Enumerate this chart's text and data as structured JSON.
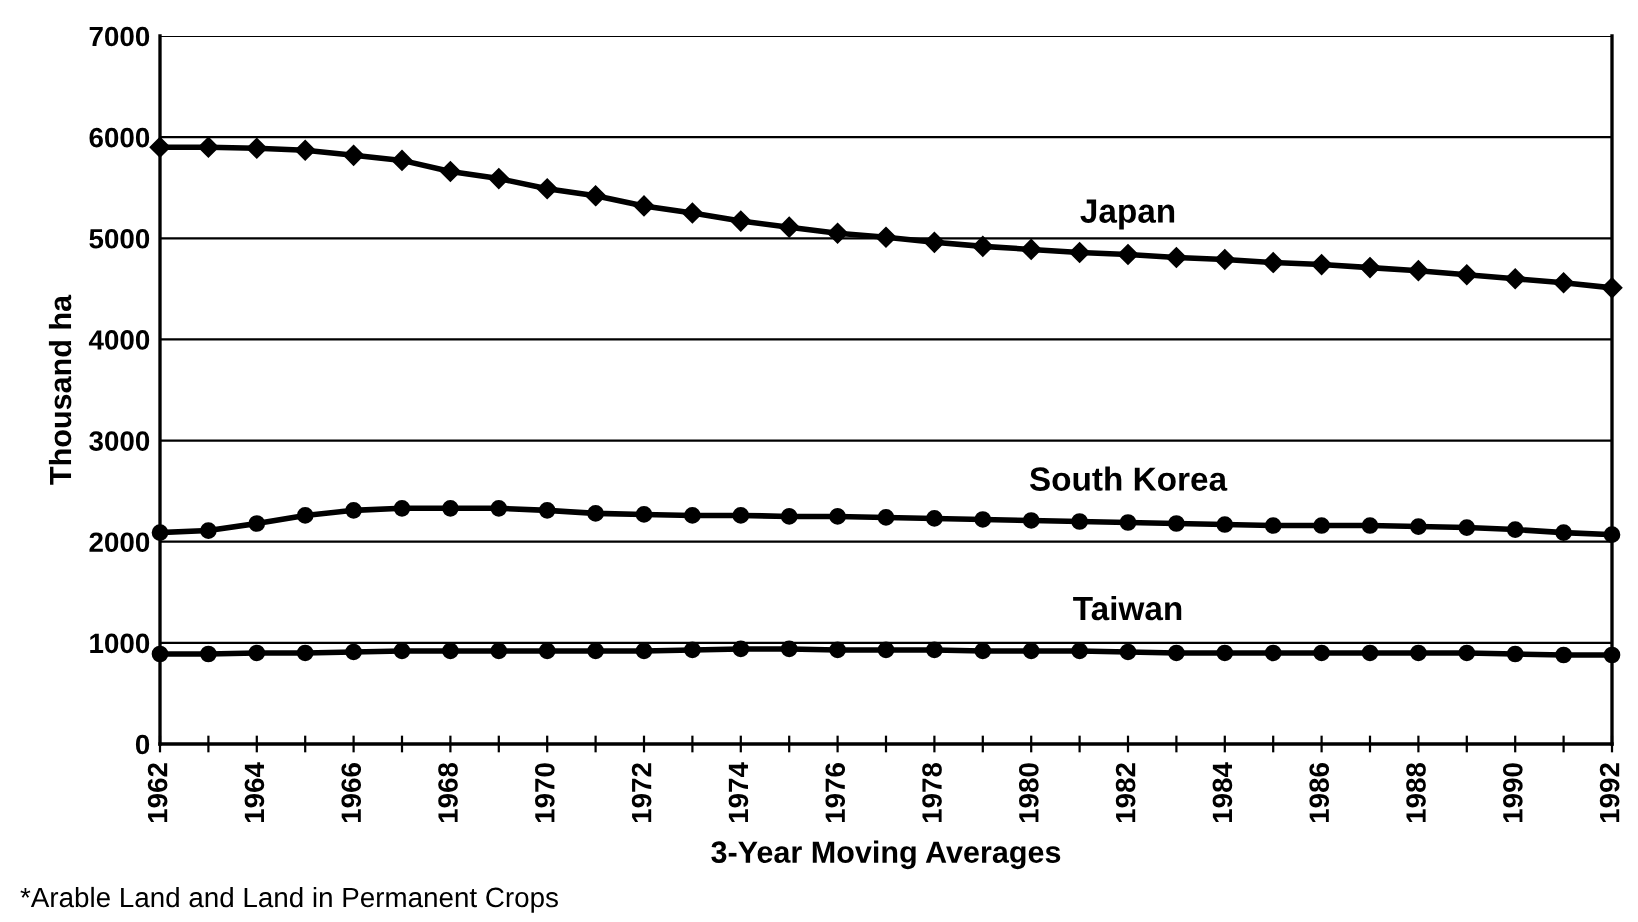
{
  "chart_data": {
    "type": "line",
    "xlabel": "3-Year Moving Averages",
    "ylabel": "Thousand ha",
    "x": [
      1962,
      1963,
      1964,
      1965,
      1966,
      1967,
      1968,
      1969,
      1970,
      1971,
      1972,
      1973,
      1974,
      1975,
      1976,
      1977,
      1978,
      1979,
      1980,
      1981,
      1982,
      1983,
      1984,
      1985,
      1986,
      1987,
      1988,
      1989,
      1990,
      1991,
      1992
    ],
    "series": [
      {
        "name": "Japan",
        "color": "#000000",
        "marker": "diamond",
        "values": [
          5900,
          5900,
          5890,
          5870,
          5820,
          5770,
          5660,
          5590,
          5490,
          5420,
          5320,
          5250,
          5170,
          5110,
          5050,
          5010,
          4960,
          4920,
          4890,
          4860,
          4840,
          4810,
          4790,
          4760,
          4740,
          4710,
          4680,
          4640,
          4600,
          4560,
          4510
        ]
      },
      {
        "name": "South Korea",
        "color": "#000000",
        "marker": "circle",
        "values": [
          2090,
          2110,
          2180,
          2260,
          2310,
          2330,
          2330,
          2330,
          2310,
          2280,
          2270,
          2260,
          2260,
          2250,
          2250,
          2240,
          2230,
          2220,
          2210,
          2200,
          2190,
          2180,
          2170,
          2160,
          2160,
          2160,
          2150,
          2140,
          2120,
          2090,
          2070
        ]
      },
      {
        "name": "Taiwan",
        "color": "#000000",
        "marker": "circle",
        "values": [
          890,
          890,
          900,
          900,
          910,
          920,
          920,
          920,
          920,
          920,
          920,
          930,
          940,
          940,
          930,
          930,
          930,
          920,
          920,
          920,
          910,
          900,
          900,
          900,
          900,
          900,
          900,
          900,
          890,
          880,
          880
        ]
      }
    ],
    "xlim": [
      1962,
      1992
    ],
    "xticks": [
      1962,
      {
        "value": 1963,
        "label": null
      },
      1964,
      {
        "value": 1965,
        "label": null
      },
      1966,
      {
        "value": 1967,
        "label": null
      },
      1968,
      {
        "value": 1969,
        "label": null
      },
      1970,
      {
        "value": 1971,
        "label": null
      },
      1972,
      {
        "value": 1973,
        "label": null
      },
      1974,
      {
        "value": 1975,
        "label": null
      },
      1976,
      {
        "value": 1977,
        "label": null
      },
      1978,
      {
        "value": 1979,
        "label": null
      },
      1980,
      {
        "value": 1981,
        "label": null
      },
      1982,
      {
        "value": 1983,
        "label": null
      },
      1984,
      {
        "value": 1985,
        "label": null
      },
      1986,
      {
        "value": 1987,
        "label": null
      },
      1988,
      {
        "value": 1989,
        "label": null
      },
      1990,
      {
        "value": 1991,
        "label": null
      },
      1992
    ],
    "ylim": [
      0,
      7000
    ],
    "yticks": [
      0,
      1000,
      2000,
      3000,
      4000,
      5000,
      6000,
      7000
    ],
    "grid": "y",
    "legend": false,
    "line_style": "solid",
    "annotations": [
      "*Arable Land and Land in Permanent Crops"
    ]
  }
}
